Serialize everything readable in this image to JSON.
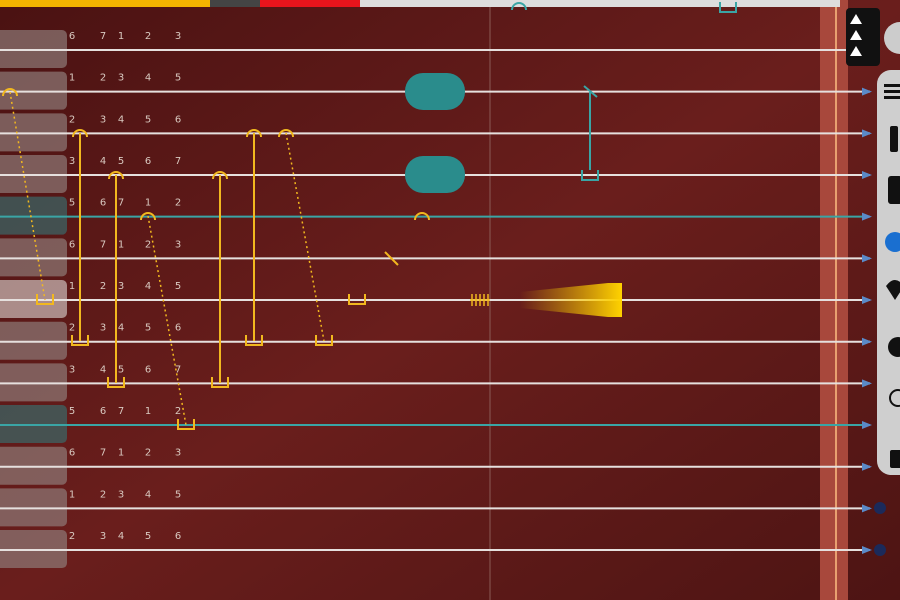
{
  "strings": [
    [
      "6",
      "7",
      "1",
      "2",
      "3"
    ],
    [
      "1",
      "2",
      "3",
      "4",
      "5"
    ],
    [
      "2",
      "3",
      "4",
      "5",
      "6"
    ],
    [
      "3",
      "4",
      "5",
      "6",
      "7"
    ],
    [
      "5",
      "6",
      "7",
      "1",
      "2"
    ],
    [
      "6",
      "7",
      "1",
      "2",
      "3"
    ],
    [
      "1",
      "2",
      "3",
      "4",
      "5"
    ],
    [
      "2",
      "3",
      "4",
      "5",
      "6"
    ],
    [
      "3",
      "4",
      "5",
      "6",
      "7"
    ],
    [
      "5",
      "6",
      "7",
      "1",
      "2"
    ],
    [
      "6",
      "7",
      "1",
      "2",
      "3"
    ],
    [
      "1",
      "2",
      "3",
      "4",
      "5"
    ],
    [
      "2",
      "3",
      "4",
      "5",
      "6"
    ]
  ]
}
